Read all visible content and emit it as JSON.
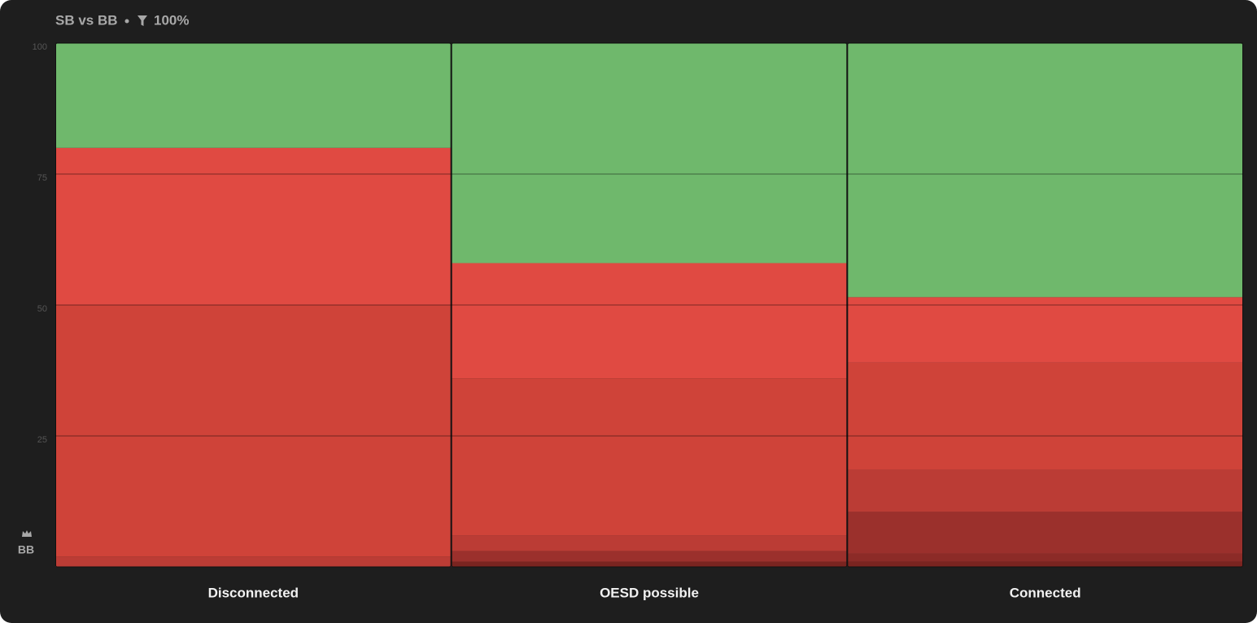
{
  "chart_data": {
    "type": "stacked_bar",
    "title": "SB vs BB",
    "filter_label": "100%",
    "y_label": "BB",
    "categories": [
      "Disconnected",
      "OESD possible",
      "Connected"
    ],
    "series": [
      {
        "color": "#7a2420",
        "values": [
          0,
          1,
          1
        ]
      },
      {
        "color": "#8c2b27",
        "values": [
          0,
          0,
          1.5
        ]
      },
      {
        "color": "#9b302c",
        "values": [
          0,
          2,
          8
        ]
      },
      {
        "color": "#bb3c35",
        "values": [
          2,
          3,
          8
        ]
      },
      {
        "color": "#cf4339",
        "values": [
          48,
          30,
          20.5
        ]
      },
      {
        "color": "#e04a42",
        "values": [
          30,
          22,
          12.5
        ]
      },
      {
        "color": "#6fb86c",
        "values": [
          20,
          42,
          48.5
        ]
      }
    ],
    "ylim": [
      0,
      100
    ],
    "yticks": [
      25,
      50,
      75,
      100
    ],
    "grid": true
  }
}
